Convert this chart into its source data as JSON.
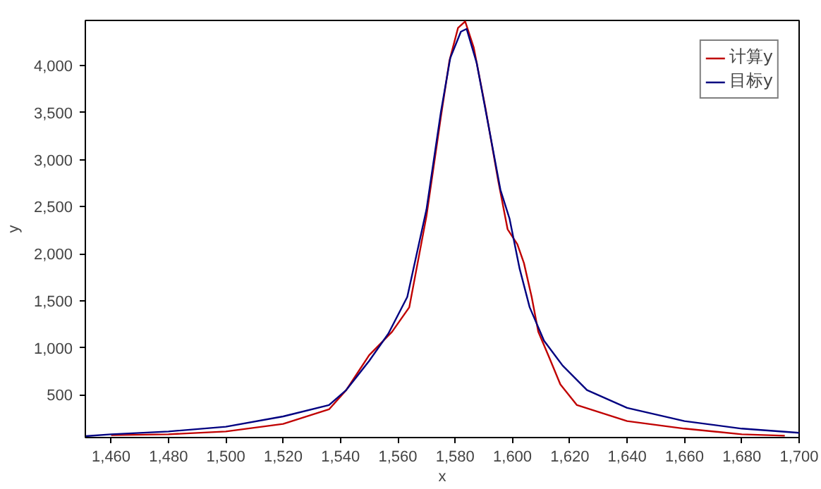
{
  "chart_data": {
    "type": "line",
    "xlabel": "x",
    "ylabel": "y",
    "xlim": [
      1451,
      1700
    ],
    "ylim": [
      45,
      4480
    ],
    "xticks": [
      {
        "value": 1460,
        "label": "1,460"
      },
      {
        "value": 1480,
        "label": "1,480"
      },
      {
        "value": 1500,
        "label": "1,500"
      },
      {
        "value": 1520,
        "label": "1,520"
      },
      {
        "value": 1540,
        "label": "1,540"
      },
      {
        "value": 1560,
        "label": "1,560"
      },
      {
        "value": 1580,
        "label": "1,580"
      },
      {
        "value": 1600,
        "label": "1,600"
      },
      {
        "value": 1620,
        "label": "1,620"
      },
      {
        "value": 1640,
        "label": "1,640"
      },
      {
        "value": 1660,
        "label": "1,660"
      },
      {
        "value": 1680,
        "label": "1,680"
      },
      {
        "value": 1700,
        "label": "1,700"
      }
    ],
    "yticks": [
      500,
      {
        "value": 1000,
        "label": "1,000"
      },
      {
        "value": 1500,
        "label": "1,500"
      },
      {
        "value": 2000,
        "label": "2,000"
      },
      {
        "value": 2500,
        "label": "2,500"
      },
      {
        "value": 3000,
        "label": "3,000"
      },
      {
        "value": 3500,
        "label": "3,500"
      },
      {
        "value": 4000,
        "label": "4,000"
      }
    ],
    "grid": false,
    "legend": "top right",
    "series": [
      {
        "name": "计算y",
        "color": "#c00000",
        "x": [
          1460,
          1480,
          1500,
          1520,
          1536,
          1542,
          1550,
          1558,
          1564,
          1570,
          1575,
          1578,
          1581,
          1583.5,
          1586.5,
          1590.5,
          1595,
          1598.3,
          1601.7,
          1604,
          1606.7,
          1609,
          1612.5,
          1616.7,
          1622.5,
          1640,
          1660,
          1680,
          1695
        ],
        "values": [
          70,
          80,
          110,
          190,
          345,
          550,
          920,
          1170,
          1430,
          2400,
          3450,
          4050,
          4400,
          4470,
          4190,
          3560,
          2780,
          2260,
          2100,
          1900,
          1540,
          1170,
          920,
          610,
          390,
          220,
          140,
          80,
          65
        ]
      },
      {
        "name": "目标y",
        "color": "#000080",
        "x": [
          1451,
          1460,
          1480,
          1500,
          1520,
          1536,
          1542,
          1550,
          1556.7,
          1563.3,
          1570,
          1575,
          1578.3,
          1582,
          1584,
          1587.5,
          1591.7,
          1595.8,
          1599,
          1602.5,
          1606,
          1611,
          1617.5,
          1626,
          1640,
          1660,
          1680,
          1700
        ],
        "values": [
          60,
          80,
          110,
          160,
          270,
          390,
          550,
          860,
          1150,
          1540,
          2470,
          3500,
          4080,
          4360,
          4390,
          4030,
          3350,
          2680,
          2370,
          1840,
          1430,
          1075,
          810,
          550,
          360,
          220,
          140,
          95
        ]
      }
    ]
  }
}
